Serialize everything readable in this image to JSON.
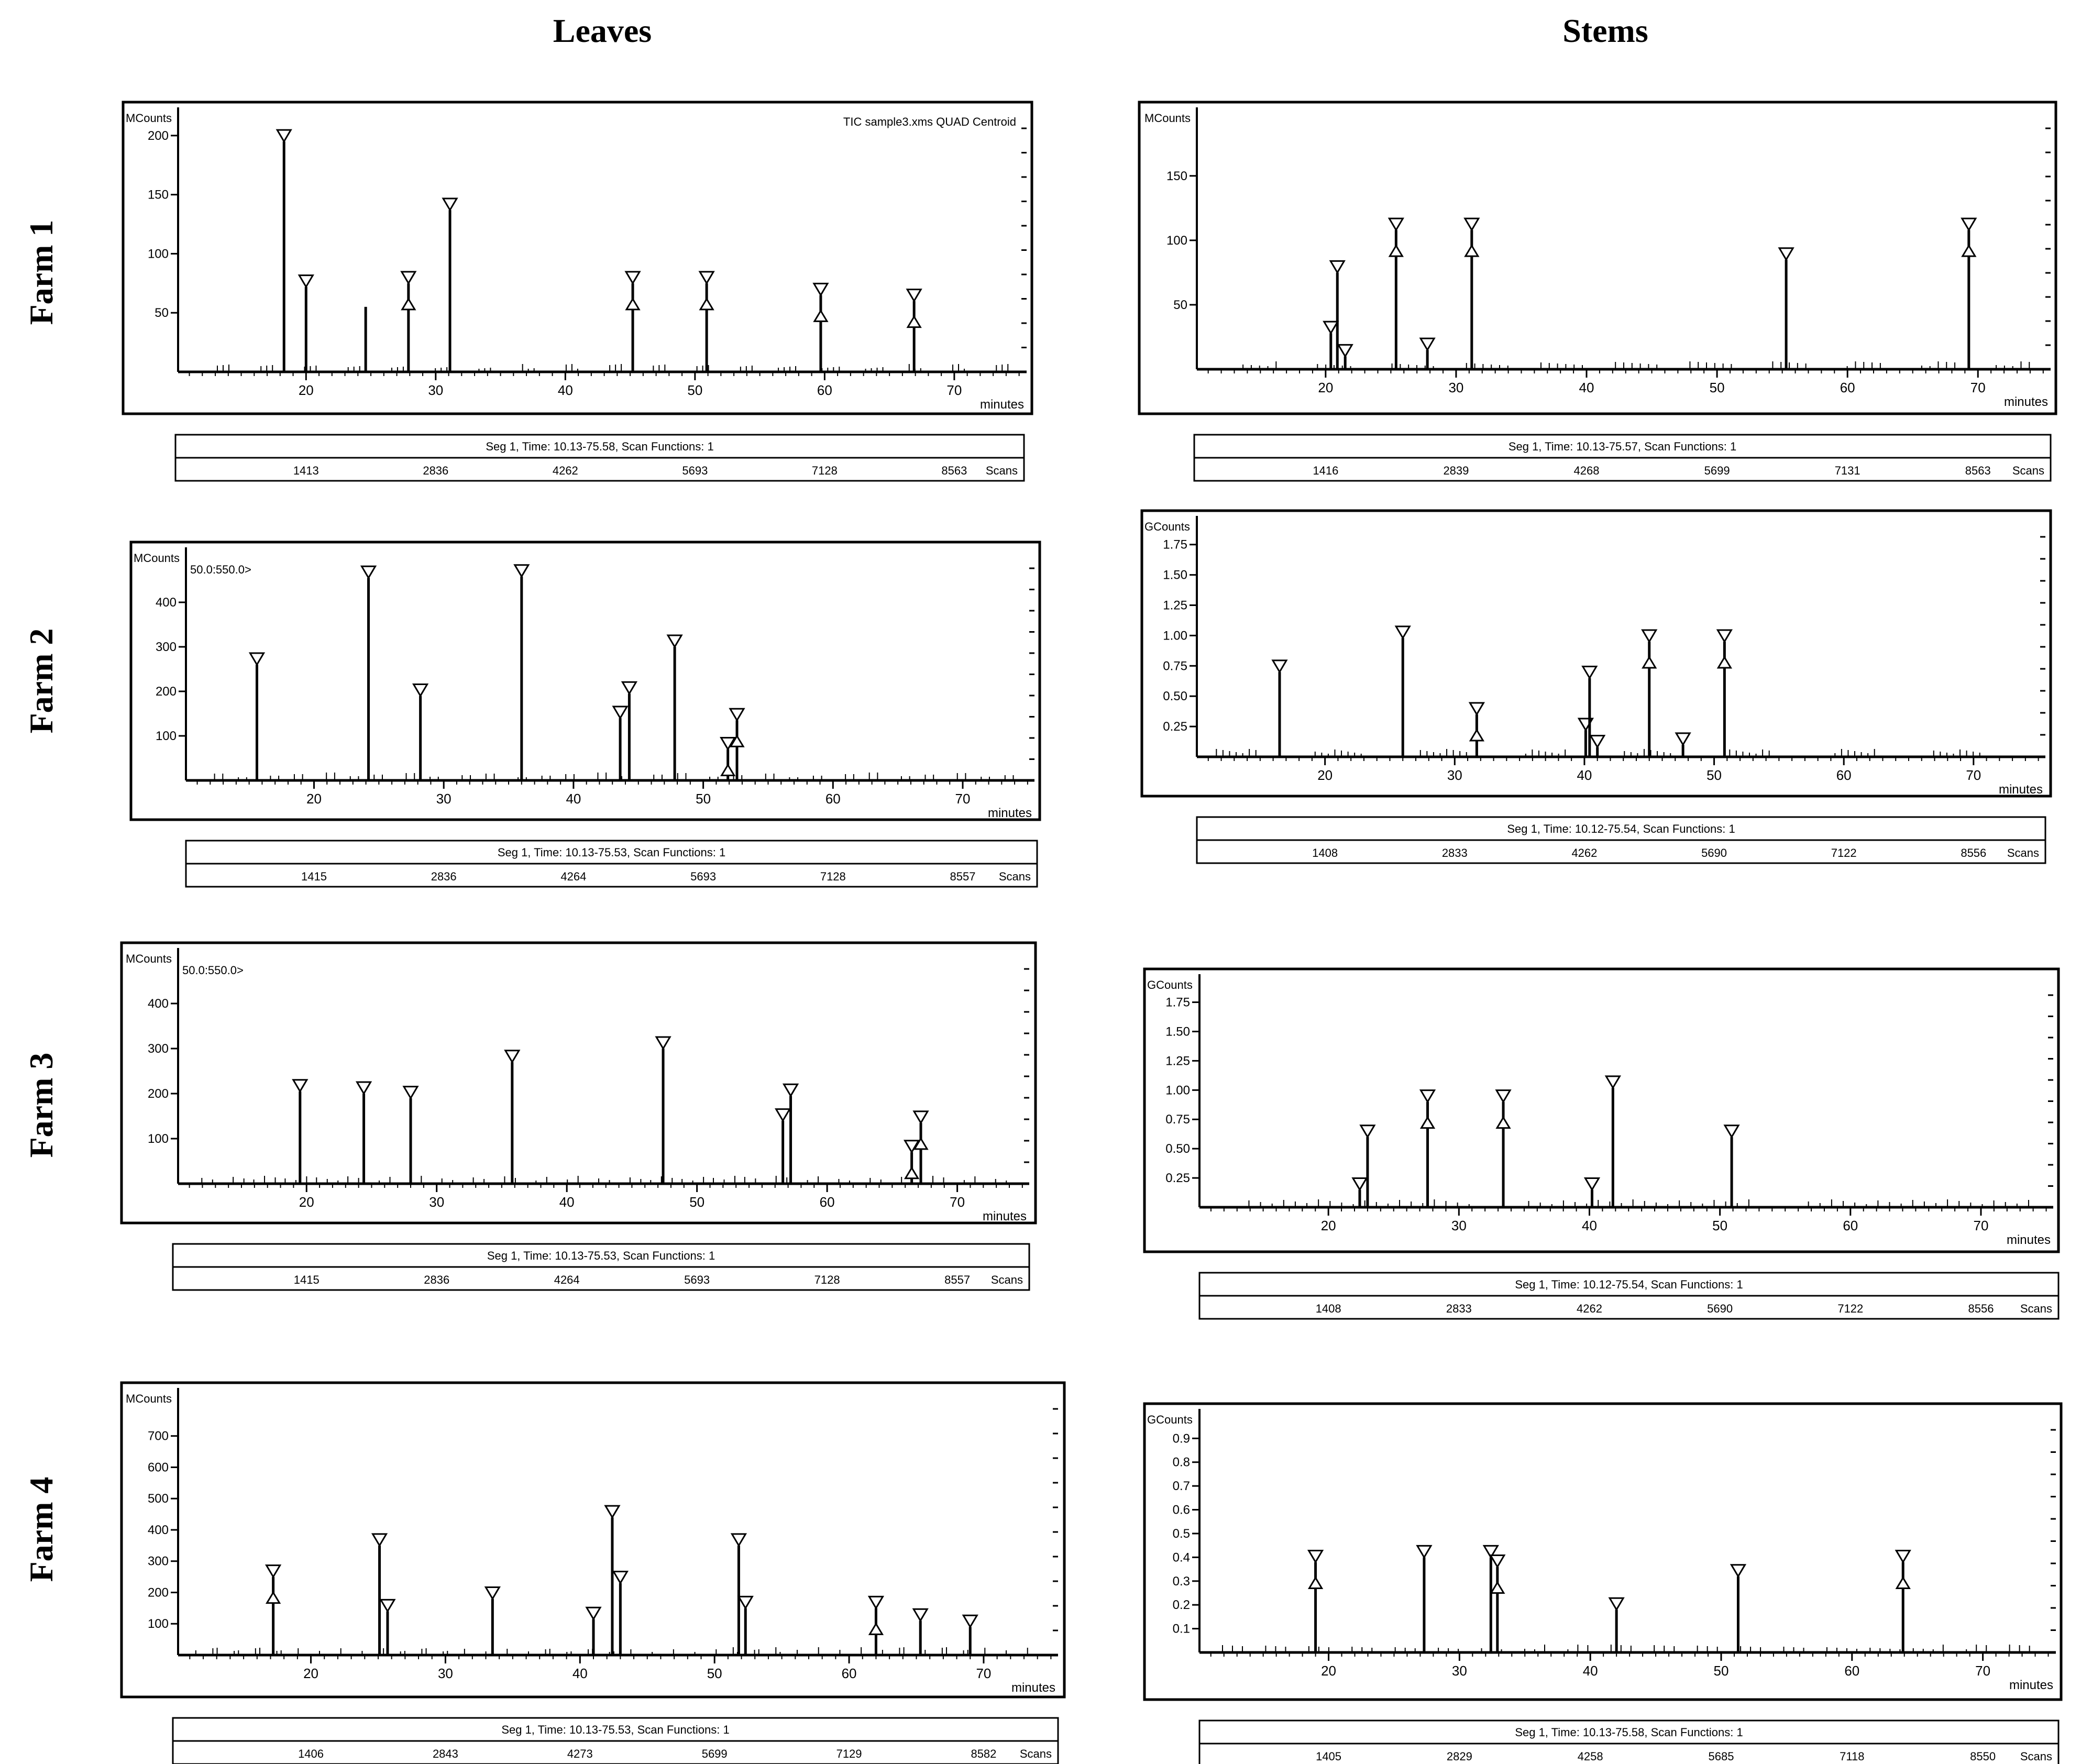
{
  "headers": {
    "columns": [
      "Leaves",
      "Stems"
    ],
    "rows": [
      "Farm 1",
      "Farm 2",
      "Farm 3",
      "Farm 4"
    ]
  },
  "chart_data": [
    {
      "type": "line",
      "panel": "Farm 1 - Leaves",
      "ylabel": "MCounts",
      "xlabel": "minutes",
      "annotation": "TIC sample3.xms QUAD Centroid",
      "segment_label": "Seg 1, Time: 10.13-75.58, Scan Functions: 1",
      "scans": [
        "1413",
        "2836",
        "4262",
        "5693",
        "7128",
        "8563"
      ],
      "scans_label": "Scans",
      "xlim": [
        10.13,
        75.58
      ],
      "ylim": [
        0,
        215
      ],
      "xticks": [
        20,
        30,
        40,
        50,
        60,
        70
      ],
      "yticks": [
        50,
        100,
        150,
        200
      ],
      "ytick_labels": [
        "50",
        "100",
        "150",
        "200"
      ],
      "peaks": [
        [
          18.3,
          195,
          "v"
        ],
        [
          20.0,
          72,
          "v"
        ],
        [
          24.6,
          55,
          ""
        ],
        [
          27.9,
          75,
          "va"
        ],
        [
          31.1,
          137,
          "v"
        ],
        [
          45.2,
          75,
          "va"
        ],
        [
          50.9,
          75,
          "va"
        ],
        [
          59.7,
          65,
          "va"
        ],
        [
          66.9,
          60,
          "va"
        ]
      ]
    },
    {
      "type": "line",
      "panel": "Farm 1 - Stems",
      "ylabel": "MCounts",
      "xlabel": "minutes",
      "annotation": "",
      "segment_label": "Seg 1, Time: 10.13-75.57, Scan Functions: 1",
      "scans": [
        "1416",
        "2839",
        "4268",
        "5699",
        "7131",
        "8563"
      ],
      "scans_label": "Scans",
      "xlim": [
        10.13,
        75.57
      ],
      "ylim": [
        0,
        195
      ],
      "xticks": [
        20,
        30,
        40,
        50,
        60,
        70
      ],
      "yticks": [
        50,
        100,
        150
      ],
      "ytick_labels": [
        "50",
        "100",
        "150"
      ],
      "peaks": [
        [
          20.4,
          28,
          "v"
        ],
        [
          20.9,
          75,
          "v"
        ],
        [
          21.5,
          10,
          "v"
        ],
        [
          25.4,
          108,
          "va"
        ],
        [
          27.8,
          15,
          "v"
        ],
        [
          31.2,
          108,
          "va"
        ],
        [
          55.3,
          85,
          "v"
        ],
        [
          69.3,
          108,
          "va"
        ]
      ]
    },
    {
      "type": "line",
      "panel": "Farm 2 - Leaves",
      "ylabel": "MCounts",
      "xlabel": "minutes",
      "annotation": "50.0:550.0>",
      "segment_label": "Seg 1, Time: 10.13-75.53, Scan Functions: 1",
      "scans": [
        "1415",
        "2836",
        "4264",
        "5693",
        "7128",
        "8557"
      ],
      "scans_label": "Scans",
      "xlim": [
        10.13,
        75.53
      ],
      "ylim": [
        0,
        500
      ],
      "xticks": [
        20,
        30,
        40,
        50,
        60,
        70
      ],
      "yticks": [
        100,
        200,
        300,
        400
      ],
      "ytick_labels": [
        "100",
        "200",
        "300",
        "400"
      ],
      "peaks": [
        [
          15.6,
          260,
          "v"
        ],
        [
          24.2,
          455,
          "v"
        ],
        [
          28.2,
          190,
          "v"
        ],
        [
          36.0,
          458,
          "v"
        ],
        [
          43.6,
          140,
          "v"
        ],
        [
          44.3,
          195,
          "v"
        ],
        [
          47.8,
          300,
          "v"
        ],
        [
          51.9,
          70,
          "va"
        ],
        [
          52.6,
          135,
          "va"
        ]
      ]
    },
    {
      "type": "line",
      "panel": "Farm 2 - Stems",
      "ylabel": "GCounts",
      "xlabel": "minutes",
      "annotation": "",
      "segment_label": "Seg 1, Time: 10.12-75.54, Scan Functions: 1",
      "scans": [
        "1408",
        "2833",
        "4262",
        "5690",
        "7122",
        "8556"
      ],
      "scans_label": "Scans",
      "xlim": [
        10.12,
        75.54
      ],
      "ylim": [
        0,
        1.9
      ],
      "xticks": [
        20,
        30,
        40,
        50,
        60,
        70
      ],
      "yticks": [
        0.25,
        0.5,
        0.75,
        1.0,
        1.25,
        1.5,
        1.75
      ],
      "ytick_labels": [
        "0.25",
        "0.50",
        "0.75",
        "1.00",
        "1.25",
        "1.50",
        "1.75"
      ],
      "peaks": [
        [
          16.5,
          0.7,
          "v"
        ],
        [
          26.0,
          0.98,
          "v"
        ],
        [
          31.7,
          0.35,
          "va"
        ],
        [
          40.1,
          0.22,
          "v"
        ],
        [
          40.4,
          0.65,
          "v"
        ],
        [
          41.0,
          0.08,
          "v"
        ],
        [
          45.0,
          0.95,
          "va"
        ],
        [
          47.6,
          0.1,
          "v"
        ],
        [
          50.8,
          0.95,
          "va"
        ]
      ]
    },
    {
      "type": "line",
      "panel": "Farm 3 - Leaves",
      "ylabel": "MCounts",
      "xlabel": "minutes",
      "annotation": "50.0:550.0>",
      "segment_label": "Seg 1, Time: 10.13-75.53, Scan Functions: 1",
      "scans": [
        "1415",
        "2836",
        "4264",
        "5693",
        "7128",
        "8557"
      ],
      "scans_label": "Scans",
      "xlim": [
        10.13,
        75.53
      ],
      "ylim": [
        0,
        500
      ],
      "xticks": [
        20,
        30,
        40,
        50,
        60,
        70
      ],
      "yticks": [
        100,
        200,
        300,
        400
      ],
      "ytick_labels": [
        "100",
        "200",
        "300",
        "400"
      ],
      "peaks": [
        [
          19.5,
          205,
          "v"
        ],
        [
          24.4,
          200,
          "v"
        ],
        [
          28.0,
          190,
          "v"
        ],
        [
          35.8,
          270,
          "v"
        ],
        [
          47.4,
          300,
          "v"
        ],
        [
          56.6,
          140,
          "v"
        ],
        [
          57.2,
          195,
          "v"
        ],
        [
          66.5,
          70,
          "va"
        ],
        [
          67.2,
          135,
          "va"
        ]
      ]
    },
    {
      "type": "line",
      "panel": "Farm 3 - Stems",
      "ylabel": "GCounts",
      "xlabel": "minutes",
      "annotation": "",
      "segment_label": "Seg 1, Time: 10.12-75.54, Scan Functions: 1",
      "scans": [
        "1408",
        "2833",
        "4262",
        "5690",
        "7122",
        "8556"
      ],
      "scans_label": "Scans",
      "xlim": [
        10.12,
        75.54
      ],
      "ylim": [
        0,
        1.9
      ],
      "xticks": [
        20,
        30,
        40,
        50,
        60,
        70
      ],
      "yticks": [
        0.25,
        0.5,
        0.75,
        1.0,
        1.25,
        1.5,
        1.75
      ],
      "ytick_labels": [
        "0.25",
        "0.50",
        "0.75",
        "1.00",
        "1.25",
        "1.50",
        "1.75"
      ],
      "peaks": [
        [
          22.4,
          0.15,
          "v"
        ],
        [
          23.0,
          0.6,
          "v"
        ],
        [
          27.6,
          0.9,
          "va"
        ],
        [
          33.4,
          0.9,
          "va"
        ],
        [
          40.2,
          0.15,
          "v"
        ],
        [
          41.8,
          1.02,
          "v"
        ],
        [
          50.9,
          0.6,
          "v"
        ]
      ]
    },
    {
      "type": "line",
      "panel": "Farm 4 - Leaves",
      "ylabel": "MCounts",
      "xlabel": "minutes",
      "annotation": "",
      "segment_label": "Seg 1, Time: 10.13-75.53, Scan Functions: 1",
      "scans": [
        "1406",
        "2843",
        "4273",
        "5699",
        "7129",
        "8582"
      ],
      "scans_label": "Scans",
      "xlim": [
        10.13,
        75.53
      ],
      "ylim": [
        0,
        820
      ],
      "xticks": [
        20,
        30,
        40,
        50,
        60,
        70
      ],
      "yticks": [
        100,
        200,
        300,
        400,
        500,
        600,
        700
      ],
      "ytick_labels": [
        "100",
        "200",
        "300",
        "400",
        "500",
        "600",
        "700"
      ],
      "peaks": [
        [
          17.2,
          250,
          "va"
        ],
        [
          25.1,
          350,
          "v"
        ],
        [
          25.7,
          140,
          "v"
        ],
        [
          33.5,
          180,
          "v"
        ],
        [
          41.0,
          115,
          "v"
        ],
        [
          42.4,
          440,
          "v"
        ],
        [
          43.0,
          230,
          "v"
        ],
        [
          51.8,
          350,
          "v"
        ],
        [
          52.3,
          150,
          "v"
        ],
        [
          62.0,
          150,
          "va"
        ],
        [
          65.3,
          110,
          "v"
        ],
        [
          69.0,
          90,
          "v"
        ]
      ]
    },
    {
      "type": "line",
      "panel": "Farm 4 - Stems",
      "ylabel": "GCounts",
      "xlabel": "minutes",
      "annotation": "",
      "segment_label": "Seg 1, Time: 10.13-75.58, Scan Functions: 1",
      "scans": [
        "1405",
        "2829",
        "4258",
        "5685",
        "7118",
        "8550"
      ],
      "scans_label": "Scans",
      "xlim": [
        10.13,
        75.58
      ],
      "ylim": [
        0,
        0.98
      ],
      "xticks": [
        20,
        30,
        40,
        50,
        60,
        70
      ],
      "yticks": [
        0.1,
        0.2,
        0.3,
        0.4,
        0.5,
        0.6,
        0.7,
        0.8,
        0.9
      ],
      "ytick_labels": [
        "0.1",
        "0.2",
        "0.3",
        "0.4",
        "0.5",
        "0.6",
        "0.7",
        "0.8",
        "0.9"
      ],
      "peaks": [
        [
          19.0,
          0.38,
          "va"
        ],
        [
          27.3,
          0.4,
          "v"
        ],
        [
          32.4,
          0.4,
          "v"
        ],
        [
          32.9,
          0.36,
          "va"
        ],
        [
          42.0,
          0.18,
          "v"
        ],
        [
          51.3,
          0.32,
          "v"
        ],
        [
          63.9,
          0.38,
          "va"
        ]
      ]
    }
  ]
}
